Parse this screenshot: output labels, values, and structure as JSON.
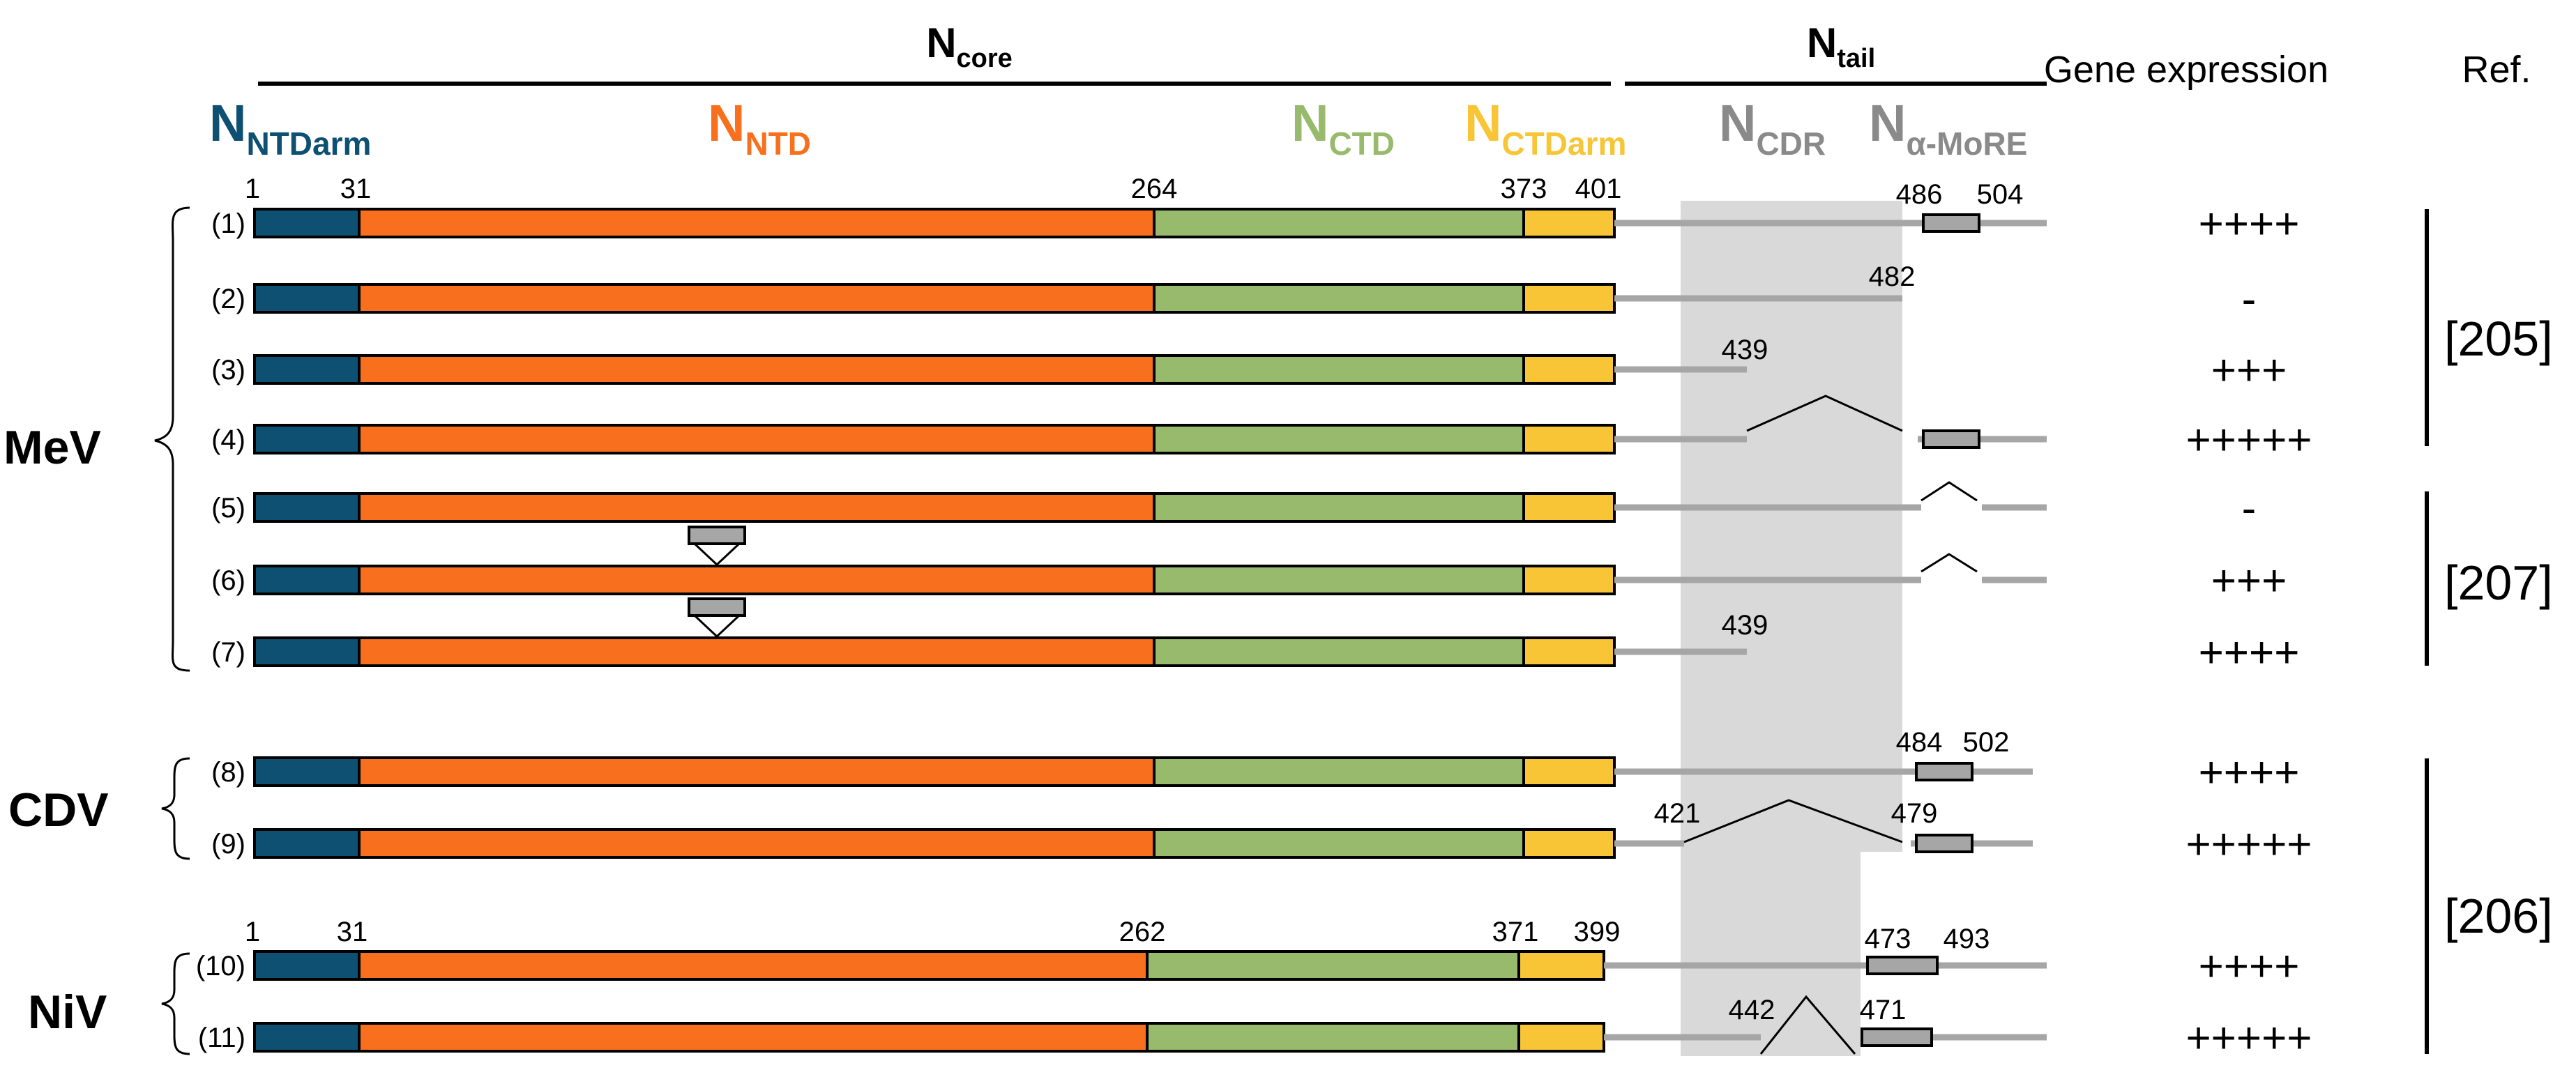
{
  "header": {
    "ncore": {
      "base": "N",
      "sub": "core"
    },
    "ntail": {
      "base": "N",
      "sub": "tail"
    },
    "gene_expression": "Gene expression",
    "ref": "Ref."
  },
  "domains": {
    "ntdarm": {
      "base": "N",
      "sub": "NTDarm",
      "color": "#0e5071"
    },
    "ntd": {
      "base": "N",
      "sub": "NTD",
      "color": "#f8701d"
    },
    "ctd": {
      "base": "N",
      "sub": "CTD",
      "color": "#97ba6c"
    },
    "ctdarm": {
      "base": "N",
      "sub": "CTDarm",
      "color": "#f7c536"
    },
    "cdr": {
      "base": "N",
      "sub": "CDR",
      "color": "#8a8a8a"
    },
    "more": {
      "base": "N",
      "sub": "α-MoRE",
      "color": "#8a8a8a"
    }
  },
  "viruses": {
    "mev": "MeV",
    "cdv": "CDV",
    "niv": "NiV"
  },
  "positions": {
    "mev_top": [
      "1",
      "31",
      "264",
      "373",
      "401"
    ],
    "niv_top": [
      "1",
      "31",
      "262",
      "371",
      "399"
    ],
    "c1_more": [
      "486",
      "504"
    ],
    "c2_end": "482",
    "c3_end": "439",
    "c7_end": "439",
    "c8_more": [
      "484",
      "502"
    ],
    "c9_del": [
      "421",
      "479"
    ],
    "c10_more": [
      "473",
      "493"
    ],
    "c11_del": [
      "442",
      "471"
    ]
  },
  "constructs": [
    {
      "label": "(1)",
      "expression": "++++"
    },
    {
      "label": "(2)",
      "expression": "-"
    },
    {
      "label": "(3)",
      "expression": "+++"
    },
    {
      "label": "(4)",
      "expression": "+++++"
    },
    {
      "label": "(5)",
      "expression": "-"
    },
    {
      "label": "(6)",
      "expression": "+++"
    },
    {
      "label": "(7)",
      "expression": "++++"
    },
    {
      "label": "(8)",
      "expression": "++++"
    },
    {
      "label": "(9)",
      "expression": "+++++"
    },
    {
      "label": "(10)",
      "expression": "++++"
    },
    {
      "label": "(11)",
      "expression": "+++++"
    }
  ],
  "refs": [
    "[205]",
    "[207]",
    "[206]"
  ]
}
